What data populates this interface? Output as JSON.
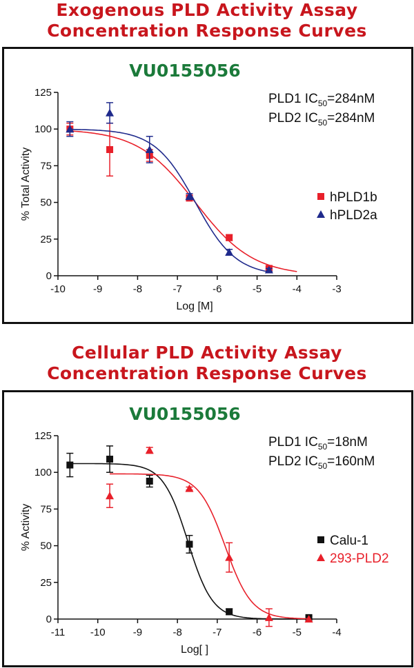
{
  "sections": [
    {
      "title_line1": "Exogenous PLD Activity Assay",
      "title_line2": "Concentration Response Curves"
    },
    {
      "title_line1": "Cellular PLD Activity Assay",
      "title_line2": "Concentration Response Curves"
    }
  ],
  "chart_data": [
    {
      "type": "scatter",
      "title": "VU0155056",
      "xlabel": "Log [M]",
      "ylabel": "% Total Activity",
      "xlim": [
        -10,
        -3
      ],
      "ylim": [
        0,
        125
      ],
      "xticks": [
        "-10",
        "-9",
        "-8",
        "-7",
        "-6",
        "-5",
        "-4",
        "-3"
      ],
      "yticks": [
        "0",
        "25",
        "50",
        "75",
        "100",
        "125"
      ],
      "ic50_lines": [
        {
          "label": "PLD1 IC",
          "sub": "50",
          "value": "=284nM"
        },
        {
          "label": "PLD2 IC",
          "sub": "50",
          "value": "=284nM"
        }
      ],
      "legend_position": "right",
      "series": [
        {
          "name": "hPLD1b",
          "marker": "square",
          "color": "#e8202a",
          "points": [
            {
              "x": -9.7,
              "y": 100,
              "err": 4
            },
            {
              "x": -8.7,
              "y": 86,
              "err": 18
            },
            {
              "x": -7.7,
              "y": 82,
              "err": 4
            },
            {
              "x": -6.7,
              "y": 53,
              "err": 2
            },
            {
              "x": -5.7,
              "y": 26,
              "err": 2
            },
            {
              "x": -4.7,
              "y": 5,
              "err": 1
            }
          ],
          "fit": {
            "top": 100,
            "bottom": 0,
            "logIC50": -6.55,
            "hill": 0.6,
            "xrange": [
              -9.7,
              -4.0
            ]
          }
        },
        {
          "name": "hPLD2a",
          "marker": "triangle",
          "color": "#1f2a8c",
          "points": [
            {
              "x": -9.7,
              "y": 100,
              "err": 5
            },
            {
              "x": -8.7,
              "y": 111,
              "err": 7
            },
            {
              "x": -7.7,
              "y": 86,
              "err": 9
            },
            {
              "x": -6.7,
              "y": 54,
              "err": 2
            },
            {
              "x": -5.7,
              "y": 16,
              "err": 2
            },
            {
              "x": -4.7,
              "y": 4,
              "err": 1
            }
          ],
          "fit": {
            "top": 100,
            "bottom": 0,
            "logIC50": -6.55,
            "hill": 0.85,
            "xrange": [
              -9.7,
              -4.7
            ]
          }
        }
      ]
    },
    {
      "type": "scatter",
      "title": "VU0155056",
      "xlabel": "Log[ ]",
      "ylabel": "% Activity",
      "xlim": [
        -11,
        -4
      ],
      "ylim": [
        0,
        125
      ],
      "xticks": [
        "-11",
        "-10",
        "-9",
        "-8",
        "-7",
        "-6",
        "-5",
        "-4"
      ],
      "yticks": [
        "0",
        "25",
        "50",
        "75",
        "100",
        "125"
      ],
      "ic50_lines": [
        {
          "label": "PLD1 IC",
          "sub": "50",
          "value": "=18nM"
        },
        {
          "label": "PLD2 IC",
          "sub": "50",
          "value": "=160nM"
        }
      ],
      "legend_position": "right",
      "series": [
        {
          "name": "Calu-1",
          "marker": "square",
          "color": "#111111",
          "points": [
            {
              "x": -10.7,
              "y": 105,
              "err": 8
            },
            {
              "x": -9.7,
              "y": 109,
              "err": 9
            },
            {
              "x": -8.7,
              "y": 94,
              "err": 4
            },
            {
              "x": -7.7,
              "y": 51,
              "err": 6
            },
            {
              "x": -6.7,
              "y": 5,
              "err": 2
            },
            {
              "x": -4.7,
              "y": 1,
              "err": 1
            }
          ],
          "fit": {
            "top": 106,
            "bottom": 0,
            "logIC50": -7.74,
            "hill": 1.4,
            "xrange": [
              -10.7,
              -4.7
            ]
          }
        },
        {
          "name": "293-PLD2",
          "marker": "triangle",
          "color": "#e8202a",
          "points": [
            {
              "x": -9.7,
              "y": 84,
              "err": 8
            },
            {
              "x": -8.7,
              "y": 115,
              "err": 2
            },
            {
              "x": -7.7,
              "y": 89,
              "err": 1
            },
            {
              "x": -6.7,
              "y": 42,
              "err": 10
            },
            {
              "x": -5.7,
              "y": 1,
              "err": 6
            },
            {
              "x": -4.7,
              "y": 0,
              "err": 0
            }
          ],
          "fit": {
            "top": 99,
            "bottom": 0,
            "logIC50": -6.8,
            "hill": 1.3,
            "xrange": [
              -9.7,
              -4.7
            ]
          }
        }
      ]
    }
  ]
}
